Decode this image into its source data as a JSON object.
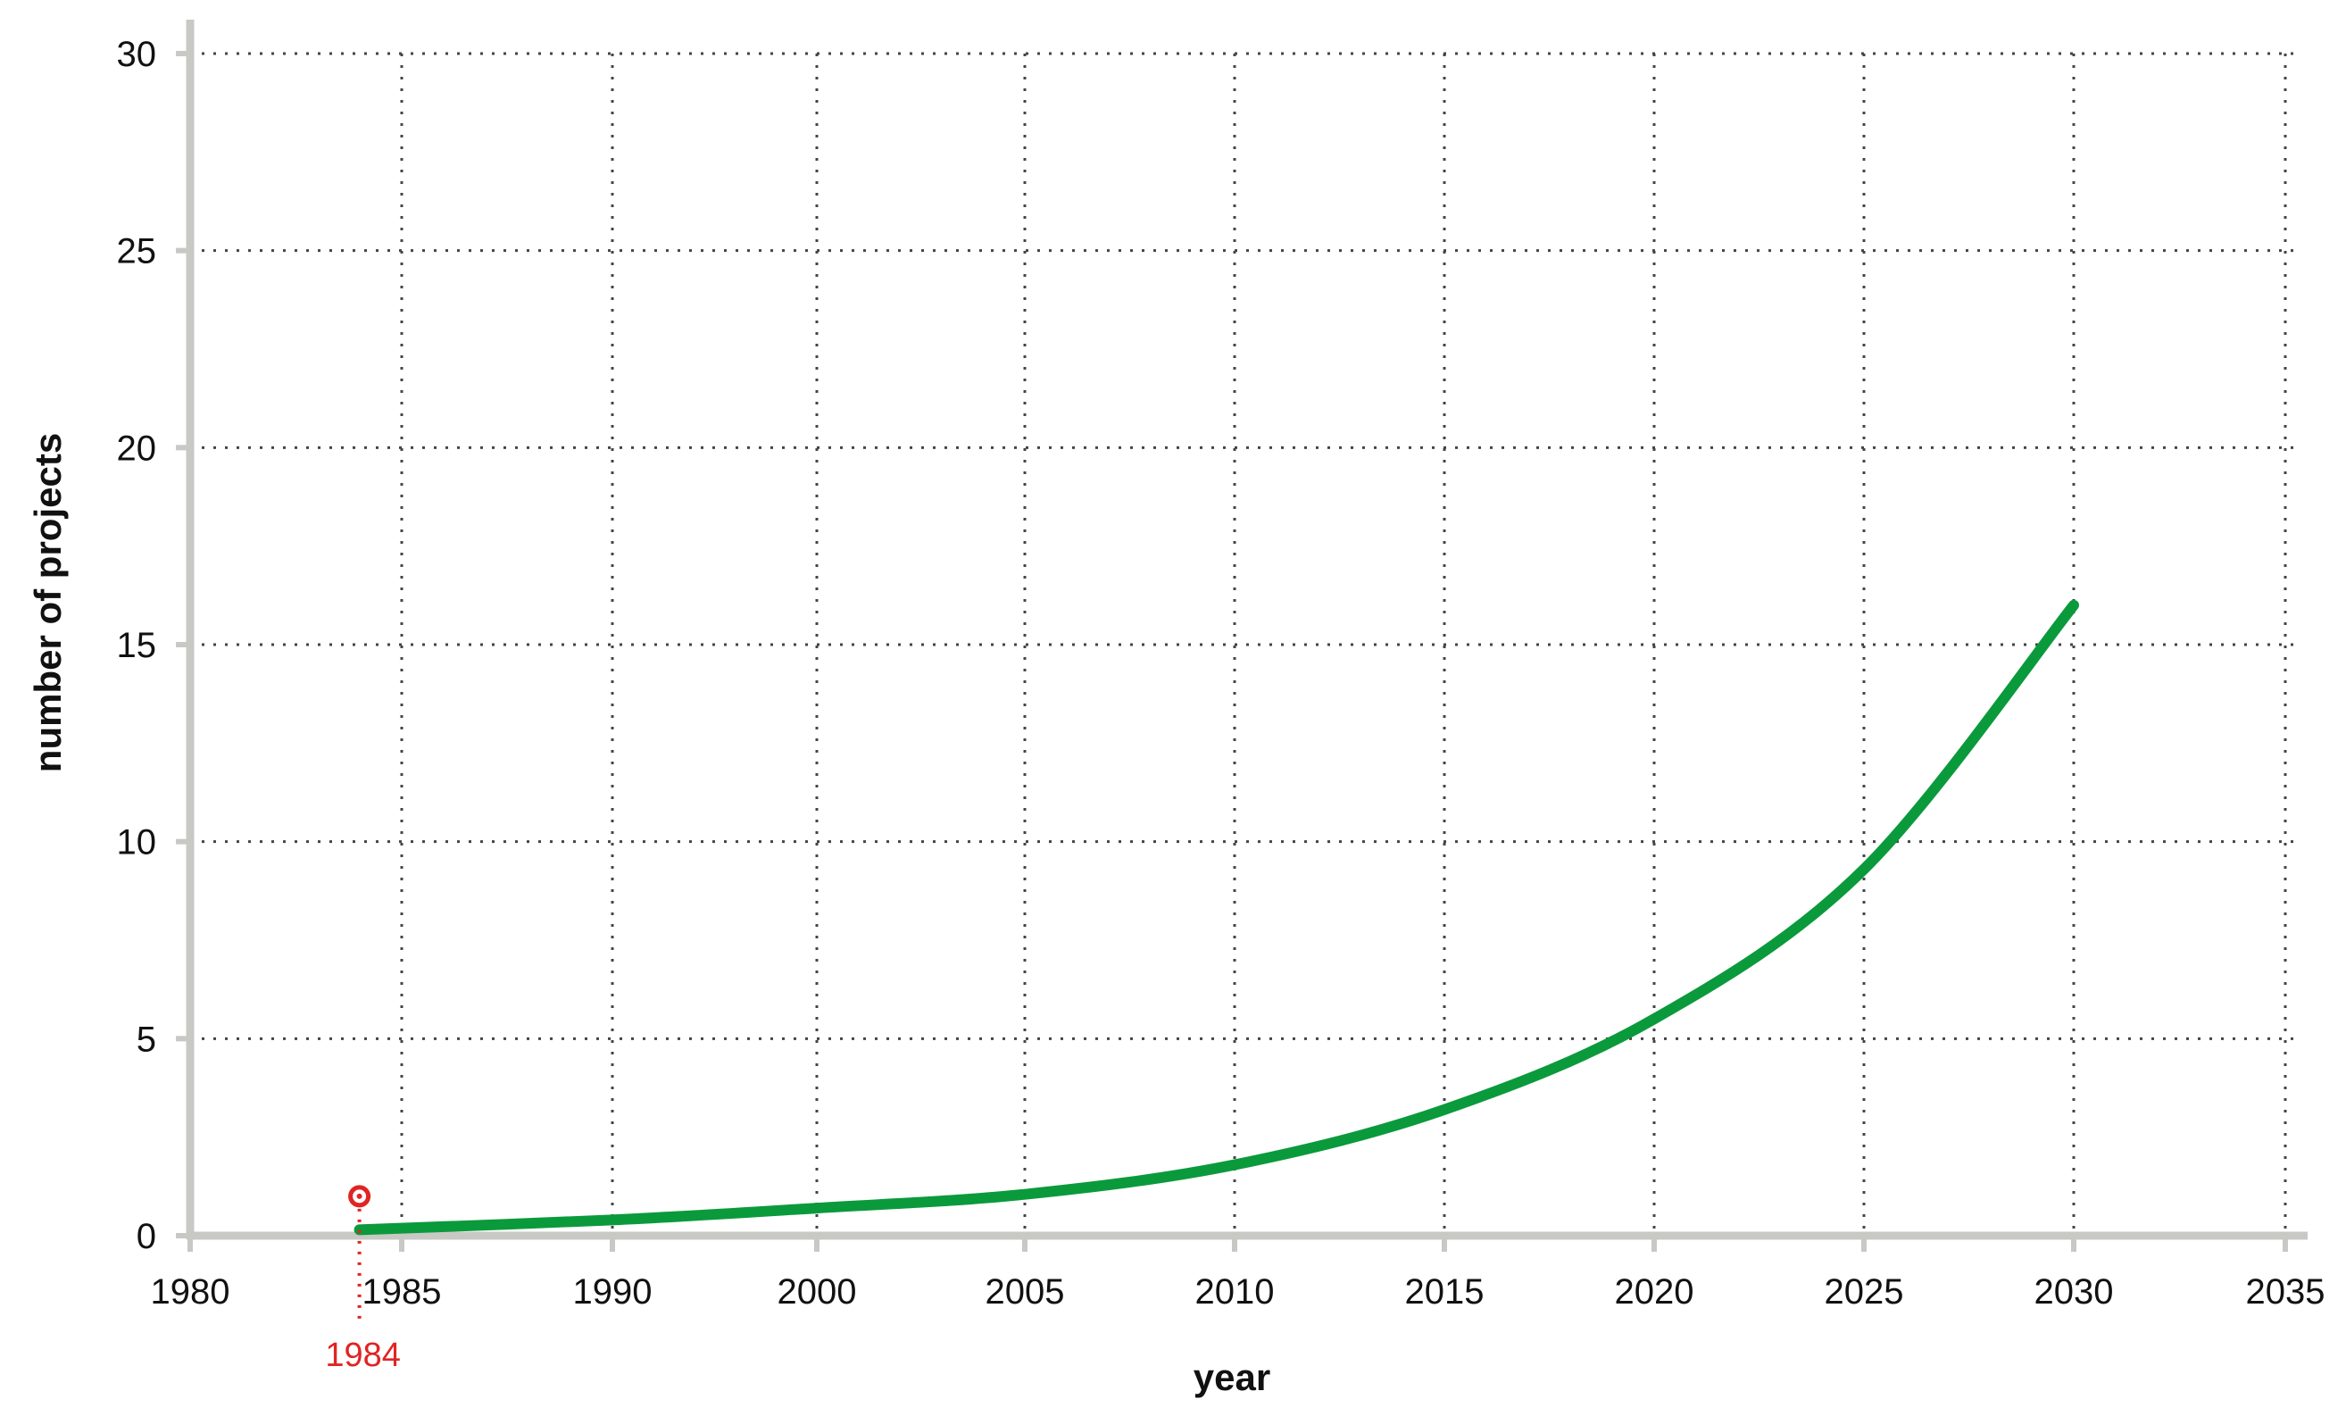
{
  "chart_data": {
    "type": "line",
    "xlabel": "year",
    "ylabel": "number of projects",
    "x_ticks": [
      "1980",
      "1985",
      "1990",
      "2000",
      "2005",
      "2010",
      "2015",
      "2020",
      "2025",
      "2030",
      "2035"
    ],
    "y_ticks": [
      "0",
      "5",
      "10",
      "15",
      "20",
      "25",
      "30"
    ],
    "ylim": [
      0,
      30
    ],
    "grid": true,
    "series": [
      {
        "color": "#0a9a3c",
        "points": [
          [
            "1984",
            0.15
          ],
          [
            "1990",
            0.4
          ],
          [
            "2000",
            0.7
          ],
          [
            "2005",
            1.05
          ],
          [
            "2010",
            1.8
          ],
          [
            "2015",
            3.2
          ],
          [
            "2020",
            5.5
          ],
          [
            "2025",
            9.3
          ],
          [
            "2030",
            16.0
          ]
        ]
      }
    ],
    "annotations": [
      {
        "label": "1984",
        "x": "1984",
        "y": 1.0,
        "color": "#e02424"
      }
    ],
    "colors": {
      "axis": "#c8c8c4",
      "grid": "#444444",
      "line": "#0a9a3c",
      "annotation": "#e02424"
    }
  }
}
